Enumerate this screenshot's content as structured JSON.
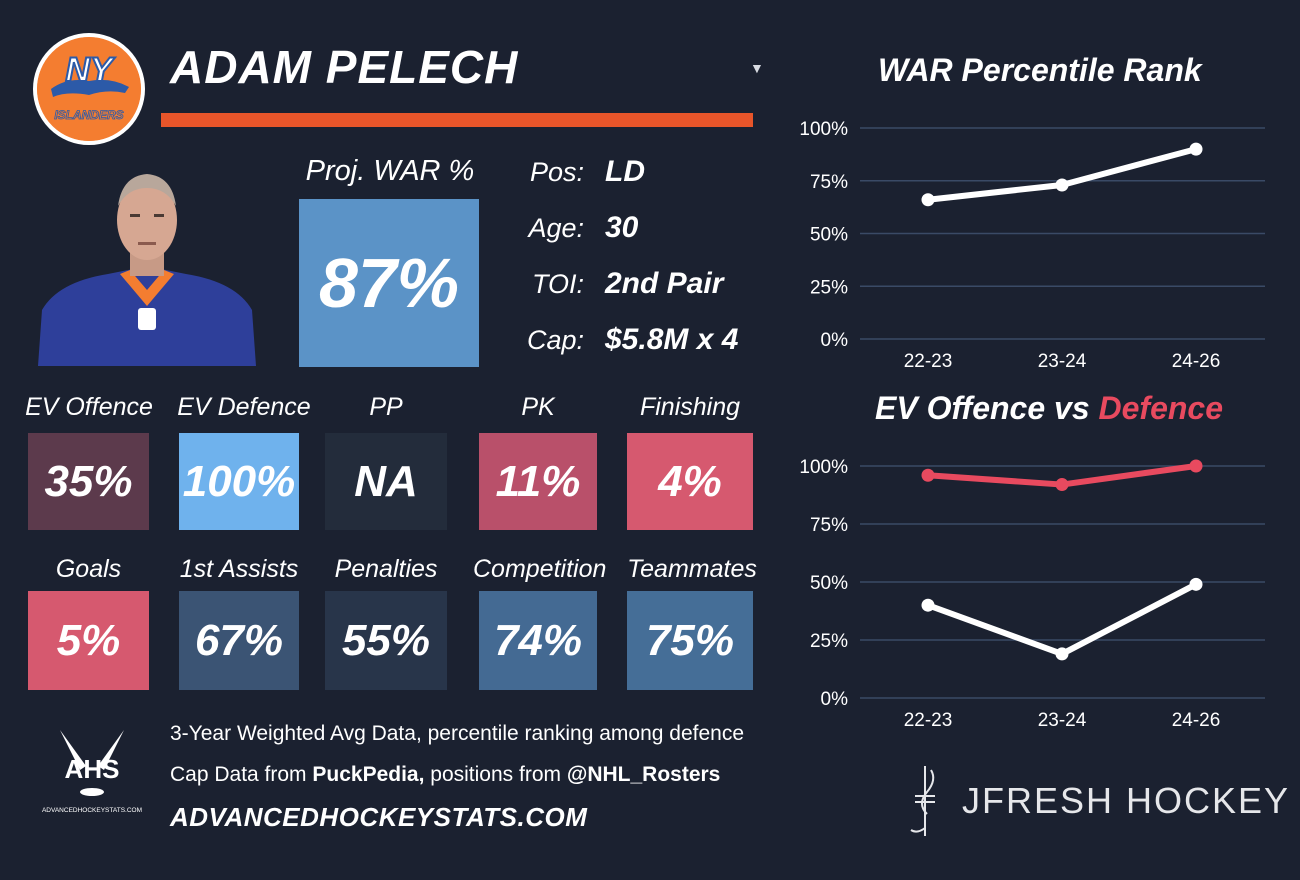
{
  "player": {
    "name": "ADAM PELECH",
    "team_logo_text_top": "NY",
    "team_logo_text_bottom": "ISLANDERS"
  },
  "proj_war": {
    "label": "Proj. WAR %",
    "value": "87%",
    "color": "#5b93c7"
  },
  "info": [
    {
      "label": "Pos:",
      "value": "LD"
    },
    {
      "label": "Age:",
      "value": "30"
    },
    {
      "label": "TOI:",
      "value": "2nd Pair"
    },
    {
      "label": "Cap:",
      "value": "$5.8M x 4"
    }
  ],
  "tiles_row1": [
    {
      "label": "EV Offence",
      "value": "35%",
      "color": "#5c3a4c"
    },
    {
      "label": "EV Defence",
      "value": "100%",
      "color": "#6fb2ed"
    },
    {
      "label": "PP",
      "value": "NA",
      "color": "#232c3b"
    },
    {
      "label": "PK",
      "value": "11%",
      "color": "#b9506a"
    },
    {
      "label": "Finishing",
      "value": "4%",
      "color": "#d6596f"
    }
  ],
  "tiles_row2": [
    {
      "label": "Goals",
      "value": "5%",
      "color": "#d6596f"
    },
    {
      "label": "1st Assists",
      "value": "67%",
      "color": "#3b5474"
    },
    {
      "label": "Penalties",
      "value": "55%",
      "color": "#28354a"
    },
    {
      "label": "Competition",
      "value": "74%",
      "color": "#446a93"
    },
    {
      "label": "Teammates",
      "value": "75%",
      "color": "#456e97"
    }
  ],
  "footer": {
    "line1": "3-Year Weighted Avg Data, percentile ranking among defence",
    "line2_pre": "Cap Data from ",
    "line2_bold1": "PuckPedia,",
    "line2_mid": " positions from ",
    "line2_bold2": "@NHL_Rosters",
    "url": "ADVANCEDHOCKEYSTATS.COM",
    "ahs_logo_text": "AHS",
    "ahs_logo_sub": "ADVANCEDHOCKEYSTATS.COM",
    "brand": "JFRESH HOCKEY"
  },
  "dropdown_icon": "caret-down-icon",
  "chart_data": [
    {
      "type": "line",
      "title": "WAR Percentile Rank",
      "x": [
        "22-23",
        "23-24",
        "24-26"
      ],
      "ylim": [
        0,
        100
      ],
      "yticks": [
        "100%",
        "75%",
        "50%",
        "25%",
        "0%"
      ],
      "grid": true,
      "series": [
        {
          "values": [
            66,
            73,
            90
          ],
          "color": "#ffffff"
        }
      ]
    },
    {
      "type": "line",
      "title_part1": "EV Offence vs ",
      "title_part2": "Defence",
      "title_part2_color": "#e84a5f",
      "x": [
        "22-23",
        "23-24",
        "24-26"
      ],
      "ylim": [
        0,
        100
      ],
      "yticks": [
        "100%",
        "75%",
        "50%",
        "25%",
        "0%"
      ],
      "grid": true,
      "series": [
        {
          "values": [
            96,
            92,
            100
          ],
          "color": "#e84a5f"
        },
        {
          "values": [
            40,
            19,
            49
          ],
          "color": "#ffffff"
        }
      ]
    }
  ]
}
